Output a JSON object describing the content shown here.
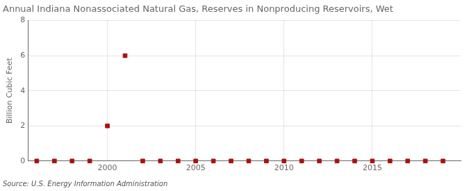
{
  "chart_data": {
    "type": "scatter",
    "title": "Annual Indiana Nonassociated Natural Gas, Reserves in Nonproducing Reservoirs, Wet",
    "ylabel": "Billion Cubic Feet",
    "annotation": "Source: U.S. Energy Information Administration",
    "x": [
      1996,
      1997,
      1998,
      1999,
      2000,
      2001,
      2002,
      2003,
      2004,
      2005,
      2006,
      2007,
      2008,
      2009,
      2010,
      2011,
      2012,
      2013,
      2014,
      2015,
      2016,
      2017,
      2018,
      2019
    ],
    "values": [
      0.0,
      0.0,
      0.0,
      0.0,
      2.0,
      6.0,
      0.0,
      0.0,
      0.0,
      0.0,
      0.0,
      0.0,
      0.0,
      0.0,
      0.0,
      0.0,
      0.0,
      0.0,
      0.0,
      0.0,
      0.0,
      0.0,
      0.0,
      0.0
    ],
    "color": "#aa1111",
    "marker": "square",
    "xlim": [
      1995.5,
      2020
    ],
    "xticks": [
      2000,
      2005,
      2010,
      2015
    ],
    "ylim": [
      0,
      8
    ],
    "yticks": [
      0,
      2,
      4,
      6,
      8
    ],
    "grid": true
  }
}
